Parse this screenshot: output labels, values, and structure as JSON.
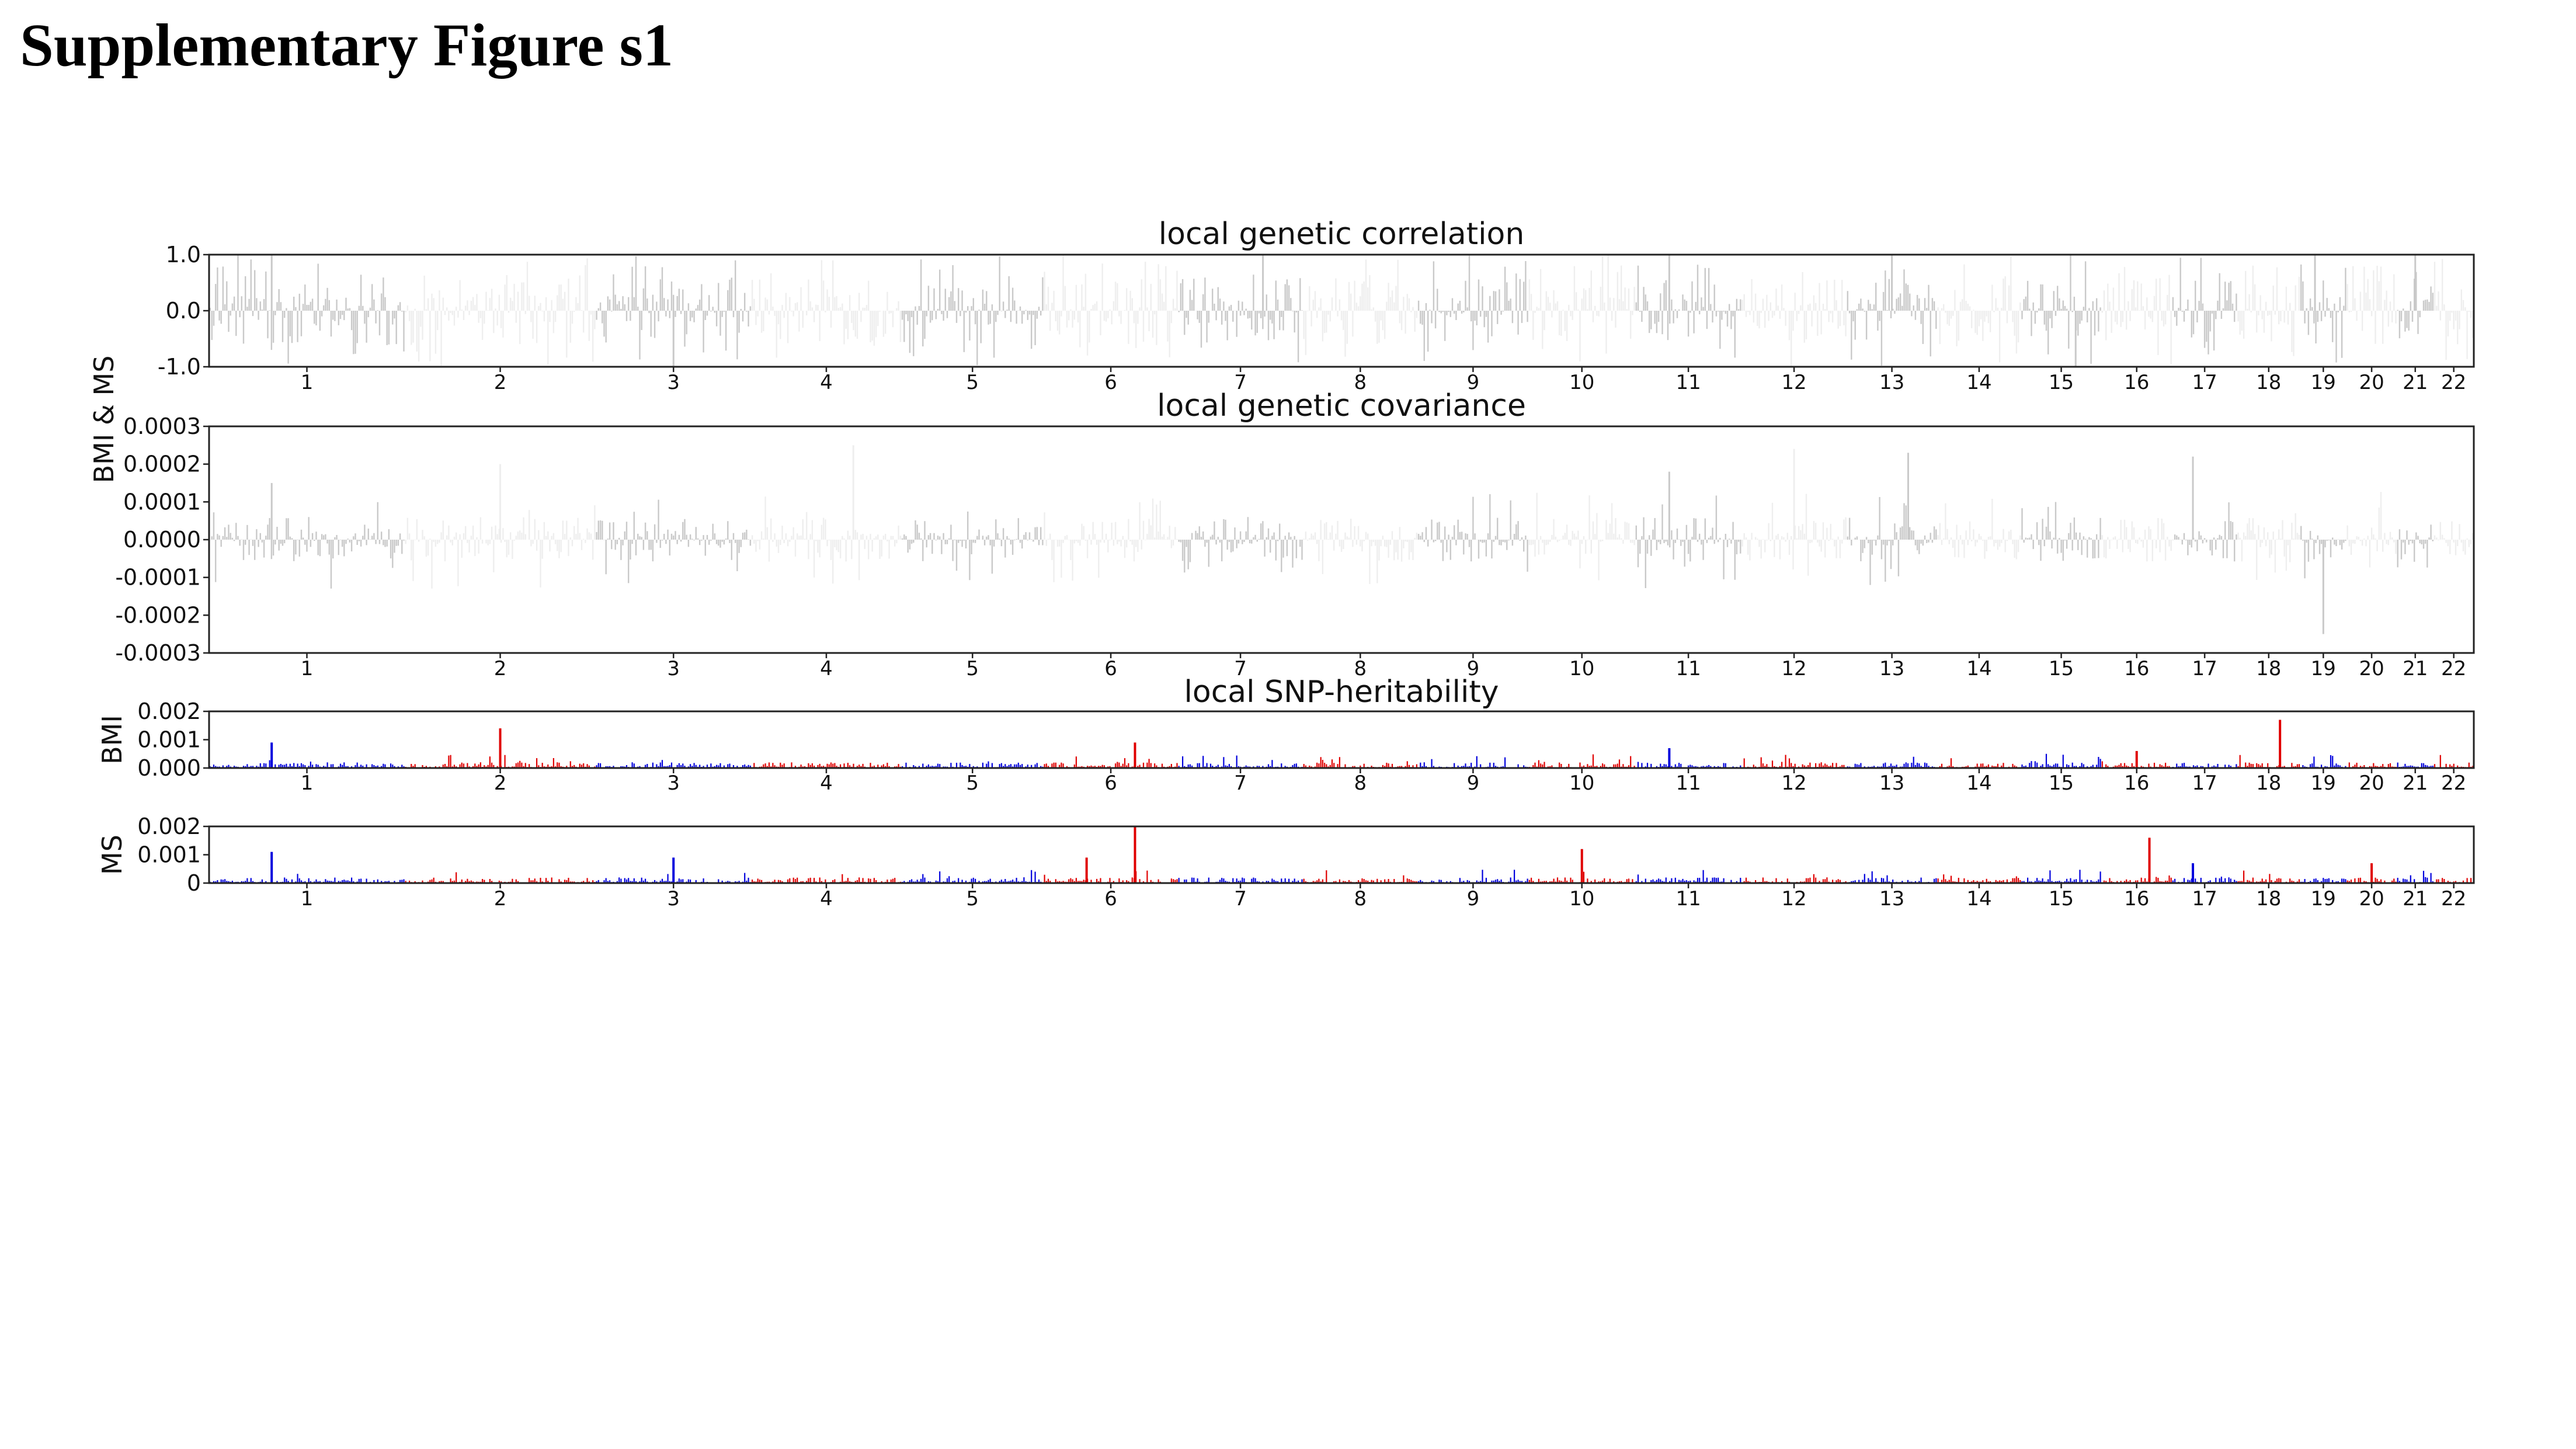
{
  "figure_title": "Supplementary Figure s1",
  "chromosomes": [
    "1",
    "2",
    "3",
    "4",
    "5",
    "6",
    "7",
    "8",
    "9",
    "10",
    "11",
    "12",
    "13",
    "14",
    "15",
    "16",
    "17",
    "18",
    "19",
    "20",
    "21",
    "22"
  ],
  "chromosome_lengths_mb": [
    249,
    243,
    198,
    191,
    181,
    171,
    159,
    146,
    141,
    136,
    135,
    134,
    115,
    107,
    102,
    90,
    83,
    80,
    59,
    64,
    47,
    51
  ],
  "colors": {
    "corr_dark": "#c9c9c9",
    "corr_light": "#eeeeee",
    "herit_blue": "#0000dd",
    "herit_red": "#e00000",
    "axis": "#222222"
  },
  "chart_data": [
    {
      "id": "local-genetic-correlation",
      "type": "bar",
      "title": "local genetic correlation",
      "shared_ylabel": "BMI & MS",
      "ylim": [
        -1.0,
        1.0
      ],
      "yticks": [
        "1.0",
        "0.0",
        "-1.0"
      ],
      "xticklabels": [
        "1",
        "2",
        "3",
        "4",
        "5",
        "6",
        "7",
        "8",
        "9",
        "10",
        "11",
        "12",
        "13",
        "14",
        "15",
        "16",
        "17",
        "18",
        "19",
        "20",
        "21",
        "22"
      ],
      "style": "alternating grey by chromosome",
      "peaks": [
        {
          "chrom": "1",
          "value": 1.0
        },
        {
          "chrom": "3",
          "value": -1.0
        },
        {
          "chrom": "7",
          "value": 1.0
        },
        {
          "chrom": "11",
          "value": 1.0
        },
        {
          "chrom": "13",
          "value": 1.0
        },
        {
          "chrom": "15",
          "value": -1.0
        },
        {
          "chrom": "19",
          "value": 1.0
        },
        {
          "chrom": "21",
          "value": 1.0
        }
      ]
    },
    {
      "id": "local-genetic-covariance",
      "type": "bar",
      "title": "local genetic covariance",
      "ylim": [
        -0.0003,
        0.0003
      ],
      "yticks": [
        "0.0003",
        "0.0002",
        "0.0001",
        "0.0000",
        "-0.0001",
        "-0.0002",
        "-0.0003"
      ],
      "xticklabels": [
        "1",
        "2",
        "3",
        "4",
        "5",
        "6",
        "7",
        "8",
        "9",
        "10",
        "11",
        "12",
        "13",
        "14",
        "15",
        "16",
        "17",
        "18",
        "19",
        "20",
        "21",
        "22"
      ],
      "style": "alternating grey by chromosome",
      "peaks": [
        {
          "chrom": "1",
          "value": 0.00015
        },
        {
          "chrom": "2",
          "value": 0.0002
        },
        {
          "chrom": "4",
          "value": 0.00025
        },
        {
          "chrom": "11",
          "value": 0.00018
        },
        {
          "chrom": "12",
          "value": 0.00024
        },
        {
          "chrom": "13",
          "value": 0.00023
        },
        {
          "chrom": "17",
          "value": 0.00022
        },
        {
          "chrom": "19",
          "value": -0.00025
        }
      ]
    },
    {
      "id": "local-snp-heritability-bmi",
      "type": "bar",
      "title": "local SNP-heritability",
      "ylabel": "BMI",
      "ylim": [
        0.0,
        0.002
      ],
      "yticks": [
        "0.002",
        "0.001",
        "0.000"
      ],
      "xticklabels": [
        "1",
        "2",
        "3",
        "4",
        "5",
        "6",
        "7",
        "8",
        "9",
        "10",
        "11",
        "12",
        "13",
        "14",
        "15",
        "16",
        "17",
        "18",
        "19",
        "20",
        "21",
        "22"
      ],
      "style": "blue / red alternating by chromosome",
      "peaks": [
        {
          "chrom": "1",
          "value": 0.0009
        },
        {
          "chrom": "2",
          "value": 0.0014
        },
        {
          "chrom": "6",
          "value": 0.0009
        },
        {
          "chrom": "11",
          "value": 0.0007
        },
        {
          "chrom": "16",
          "value": 0.0006
        },
        {
          "chrom": "18",
          "value": 0.0017
        }
      ]
    },
    {
      "id": "local-snp-heritability-ms",
      "type": "bar",
      "title": "",
      "ylabel": "MS",
      "ylim": [
        0,
        0.002
      ],
      "yticks": [
        "0.002",
        "0.001",
        "0"
      ],
      "xticklabels": [
        "1",
        "2",
        "3",
        "4",
        "5",
        "6",
        "7",
        "8",
        "9",
        "10",
        "11",
        "12",
        "13",
        "14",
        "15",
        "16",
        "17",
        "18",
        "19",
        "20",
        "21",
        "22"
      ],
      "style": "blue / red alternating by chromosome",
      "peaks": [
        {
          "chrom": "1",
          "value": 0.0011
        },
        {
          "chrom": "3",
          "value": 0.0009
        },
        {
          "chrom": "6",
          "value": 0.002
        },
        {
          "chrom": "6",
          "value": 0.0009
        },
        {
          "chrom": "10",
          "value": 0.0012
        },
        {
          "chrom": "16",
          "value": 0.0016
        },
        {
          "chrom": "17",
          "value": 0.0007
        },
        {
          "chrom": "20",
          "value": 0.0007
        }
      ]
    }
  ]
}
